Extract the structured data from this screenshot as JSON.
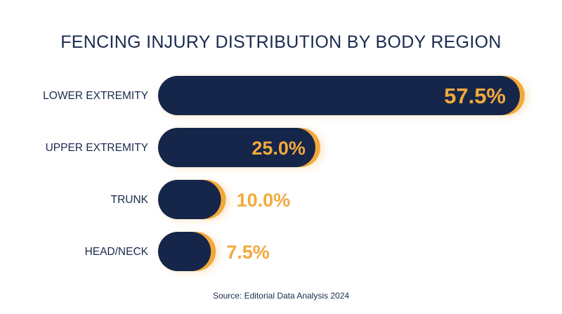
{
  "colors": {
    "bar": "#16264a",
    "accent": "#f2a93b",
    "text": "#1a2a4e"
  },
  "chart_data": {
    "type": "bar",
    "orientation": "horizontal",
    "title": "FENCING INJURY DISTRIBUTION BY BODY REGION",
    "source": "Source: Editorial Data Analysis 2024",
    "categories": [
      "LOWER EXTREMITY",
      "UPPER EXTREMITY",
      "TRUNK",
      "HEAD/NECK"
    ],
    "values": [
      57.5,
      25.0,
      10.0,
      7.5
    ],
    "value_labels": [
      "57.5%",
      "25.0%",
      "10.0%",
      "7.5%"
    ],
    "xlim": [
      0,
      57.5
    ],
    "grid": false,
    "legend": "none"
  }
}
